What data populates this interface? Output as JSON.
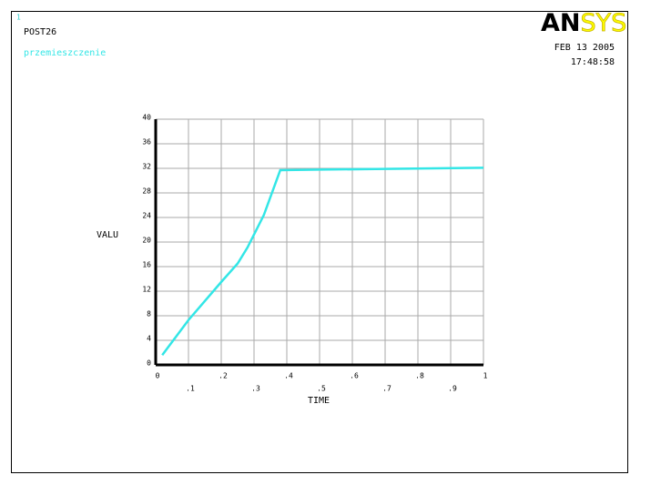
{
  "header": {
    "window_number": "1",
    "processor": "POST26",
    "logo": [
      "AN",
      "SYS"
    ],
    "date": "FEB 13 2005",
    "time": "17:48:58"
  },
  "chart_data": {
    "type": "line",
    "xlabel": "TIME",
    "ylabel": "VALU",
    "x": [
      0.02,
      0.1,
      0.2,
      0.25,
      0.28,
      0.33,
      0.38,
      0.5,
      0.7,
      1.0
    ],
    "series": [
      {
        "name": "przemieszczenie",
        "color": "#33e6e6",
        "values": [
          1.6,
          7.3,
          13.5,
          16.5,
          19.1,
          24.4,
          31.7,
          31.8,
          31.9,
          32.1
        ]
      }
    ],
    "xlim": [
      0,
      1
    ],
    "xticks": [
      0,
      {
        "value": 0.1,
        "label": ".1"
      },
      {
        "value": 0.2,
        "label": ".2"
      },
      {
        "value": 0.3,
        "label": ".3"
      },
      {
        "value": 0.4,
        "label": ".4"
      },
      {
        "value": 0.5,
        "label": ".5"
      },
      {
        "value": 0.6,
        "label": ".6"
      },
      {
        "value": 0.7,
        "label": ".7"
      },
      {
        "value": 0.8,
        "label": ".8"
      },
      {
        "value": 0.9,
        "label": ".9"
      },
      1
    ],
    "ylim": [
      0,
      40
    ],
    "yticks": [
      0,
      4,
      8,
      12,
      16,
      20,
      24,
      28,
      32,
      36,
      40
    ],
    "grid": true
  }
}
